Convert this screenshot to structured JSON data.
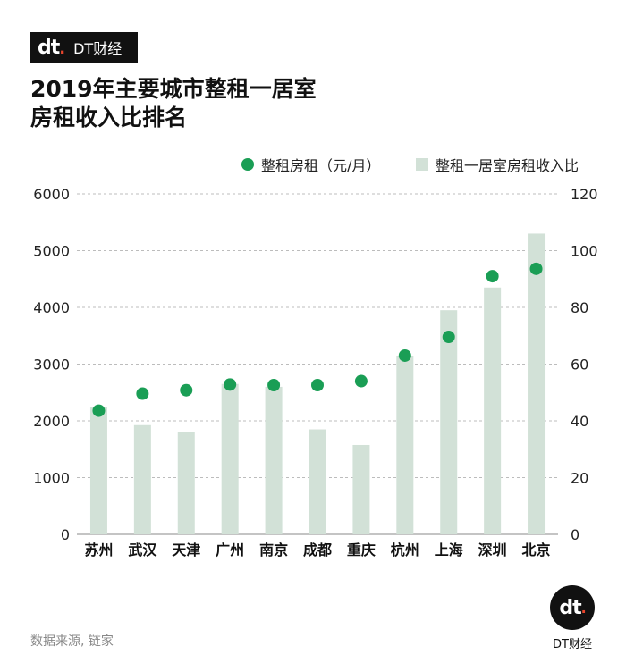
{
  "brand": {
    "mark": "dt",
    "name": "DT财经"
  },
  "header": {
    "title_line1": "2019年主要城市整租一居室",
    "title_line2": "房租收入比排名"
  },
  "legend": {
    "dot_label": "整租房租（元/月）",
    "bar_label": "整租一居室房租收入比"
  },
  "colors": {
    "dot": "#1a9e55",
    "bar": "#d2e1d7",
    "grid": "#bcbcbc"
  },
  "chart_data": {
    "type": "bar",
    "title": "2019年主要城市整租一居室房租收入比排名",
    "categories": [
      "苏州",
      "武汉",
      "天津",
      "广州",
      "南京",
      "成都",
      "重庆",
      "杭州",
      "上海",
      "深圳",
      "北京"
    ],
    "series": [
      {
        "name": "整租一居室房租收入比",
        "type": "bar",
        "axis": "right",
        "values": [
          45,
          38.5,
          36,
          53,
          52,
          37,
          31.5,
          63,
          79,
          87,
          106
        ]
      },
      {
        "name": "整租房租（元/月）",
        "type": "scatter",
        "axis": "left",
        "values": [
          2180,
          2480,
          2540,
          2640,
          2630,
          2630,
          2700,
          3150,
          3480,
          4550,
          4680
        ]
      }
    ],
    "y_left": {
      "ylim": [
        0,
        6000
      ],
      "ticks": [
        0,
        1000,
        2000,
        3000,
        4000,
        5000,
        6000
      ]
    },
    "y_right": {
      "ylim": [
        0,
        120
      ],
      "ticks": [
        0,
        20,
        40,
        60,
        80,
        100,
        120
      ]
    },
    "grid": true,
    "legend_position": "top-right"
  },
  "footer": {
    "source": "数据来源, 链家"
  }
}
